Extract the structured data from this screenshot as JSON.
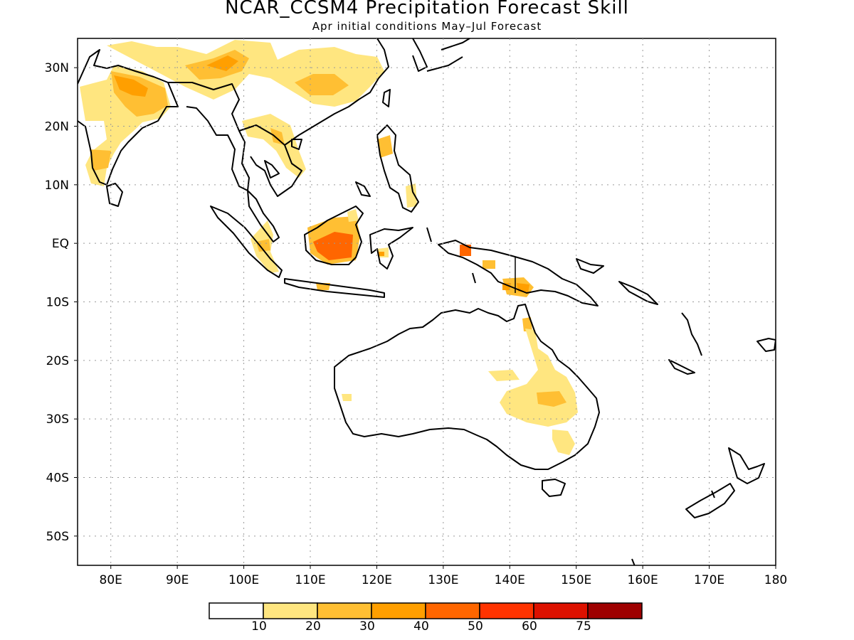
{
  "title": "NCAR_CCSM4 Precipitation Forecast Skill",
  "subtitle": "Apr initial conditions  May–Jul Forecast",
  "map": {
    "lon_range": [
      75,
      180
    ],
    "lat_range": [
      -55,
      35
    ],
    "grid": true,
    "lon_ticks": [
      {
        "value": 80,
        "label": "80E"
      },
      {
        "value": 90,
        "label": "90E"
      },
      {
        "value": 100,
        "label": "100E"
      },
      {
        "value": 110,
        "label": "110E"
      },
      {
        "value": 120,
        "label": "120E"
      },
      {
        "value": 130,
        "label": "130E"
      },
      {
        "value": 140,
        "label": "140E"
      },
      {
        "value": 150,
        "label": "150E"
      },
      {
        "value": 160,
        "label": "160E"
      },
      {
        "value": 170,
        "label": "170E"
      },
      {
        "value": 180,
        "label": "180"
      }
    ],
    "lat_ticks": [
      {
        "value": 30,
        "label": "30N"
      },
      {
        "value": 20,
        "label": "20N"
      },
      {
        "value": 10,
        "label": "10N"
      },
      {
        "value": 0,
        "label": "EQ"
      },
      {
        "value": -10,
        "label": "10S"
      },
      {
        "value": -20,
        "label": "20S"
      },
      {
        "value": -30,
        "label": "30S"
      },
      {
        "value": -40,
        "label": "40S"
      },
      {
        "value": -50,
        "label": "50S"
      }
    ]
  },
  "colorbar": {
    "colors": [
      "#ffffff",
      "#ffe680",
      "#ffbf33",
      "#ff9f00",
      "#ff6600",
      "#ff3300",
      "#dd1100",
      "#9e0000"
    ],
    "labels": [
      "10",
      "20",
      "30",
      "40",
      "50",
      "60",
      "75"
    ]
  }
}
